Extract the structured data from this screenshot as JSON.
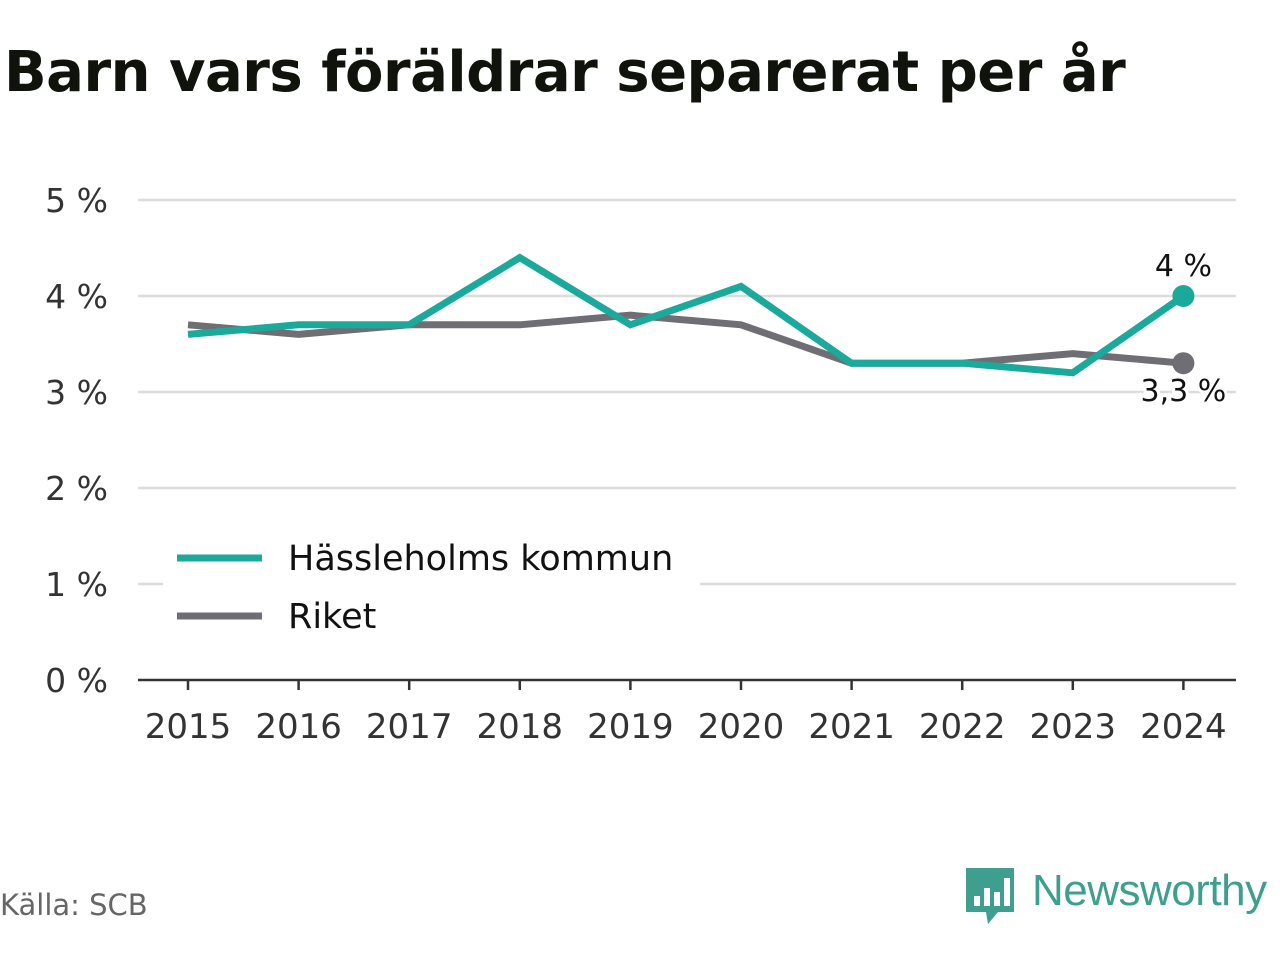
{
  "title": "Barn vars föräldrar separerat per år",
  "source": "Källa: SCB",
  "brand": {
    "name": "Newsworthy",
    "icon": "newsworthy-logo-icon",
    "color": "#3f9f8e"
  },
  "chart_data": {
    "type": "line",
    "title": "Barn vars föräldrar separerat per år",
    "xlabel": "",
    "ylabel": "",
    "categories": [
      "2015",
      "2016",
      "2017",
      "2018",
      "2019",
      "2020",
      "2021",
      "2022",
      "2023",
      "2024"
    ],
    "ylim": [
      0,
      5
    ],
    "yticks": [
      0,
      1,
      2,
      3,
      4,
      5
    ],
    "ytick_labels": [
      "0 %",
      "1 %",
      "2 %",
      "3 %",
      "4 %",
      "5 %"
    ],
    "grid": true,
    "legend_position": "bottom-left",
    "series": [
      {
        "name": "Hässleholms kommun",
        "color": "#1aa99b",
        "values": [
          3.6,
          3.7,
          3.7,
          4.4,
          3.7,
          4.1,
          3.3,
          3.3,
          3.2,
          4.0
        ],
        "end_label": "4 %"
      },
      {
        "name": "Riket",
        "color": "#6f6e74",
        "values": [
          3.7,
          3.6,
          3.7,
          3.7,
          3.8,
          3.7,
          3.3,
          3.3,
          3.4,
          3.3
        ],
        "end_label": "3,3 %"
      }
    ]
  }
}
